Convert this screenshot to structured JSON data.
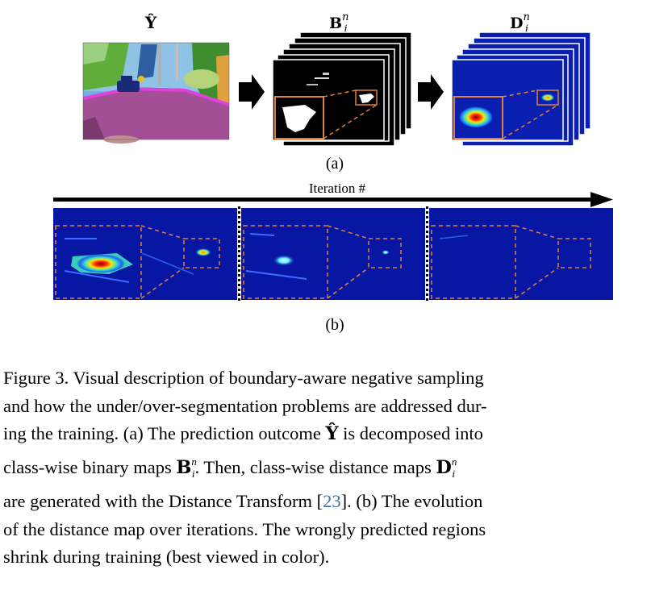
{
  "figure": {
    "panel_a": {
      "header_Y": "Ŷ",
      "header_B": "B",
      "header_B_sup": "n",
      "header_B_sub": "i",
      "header_D": "D",
      "header_D_sup": "n",
      "header_D_sub": "i",
      "label": "(a)"
    },
    "panel_b": {
      "arrow_label": "Iteration #",
      "label": "(b)"
    },
    "colors": {
      "jet_dark": "#00007f",
      "jet_blue": "#0a1fb0",
      "orange_dashed": "#e0803a",
      "seg_purple": "#a24f96",
      "seg_green": "#5fae3b",
      "seg_sky": "#6fb3e0"
    }
  },
  "caption": {
    "line1": "Figure 3. Visual description of boundary-aware negative sampling",
    "line2": "and how the under/over-segmentation problems are addressed dur-",
    "line3a": "ing the training. (a) The prediction outcome ",
    "line3_sym": "Ŷ",
    "line3b": " is decomposed into",
    "line4a": "class-wise binary maps ",
    "line4_B": "B",
    "line4_sup": "n",
    "line4_sub": "i",
    "line4b": ".  Then, class-wise distance maps ",
    "line4_D": "D",
    "line4_dsup": "n",
    "line4_dsub": "i",
    "line5a": "are generated with the Distance Transform [",
    "line5_cite": "23",
    "line5b": "]. (b) The evolution",
    "line6": "of the distance map over iterations. The wrongly predicted regions",
    "line7": "shrink during training (best viewed in color)."
  }
}
